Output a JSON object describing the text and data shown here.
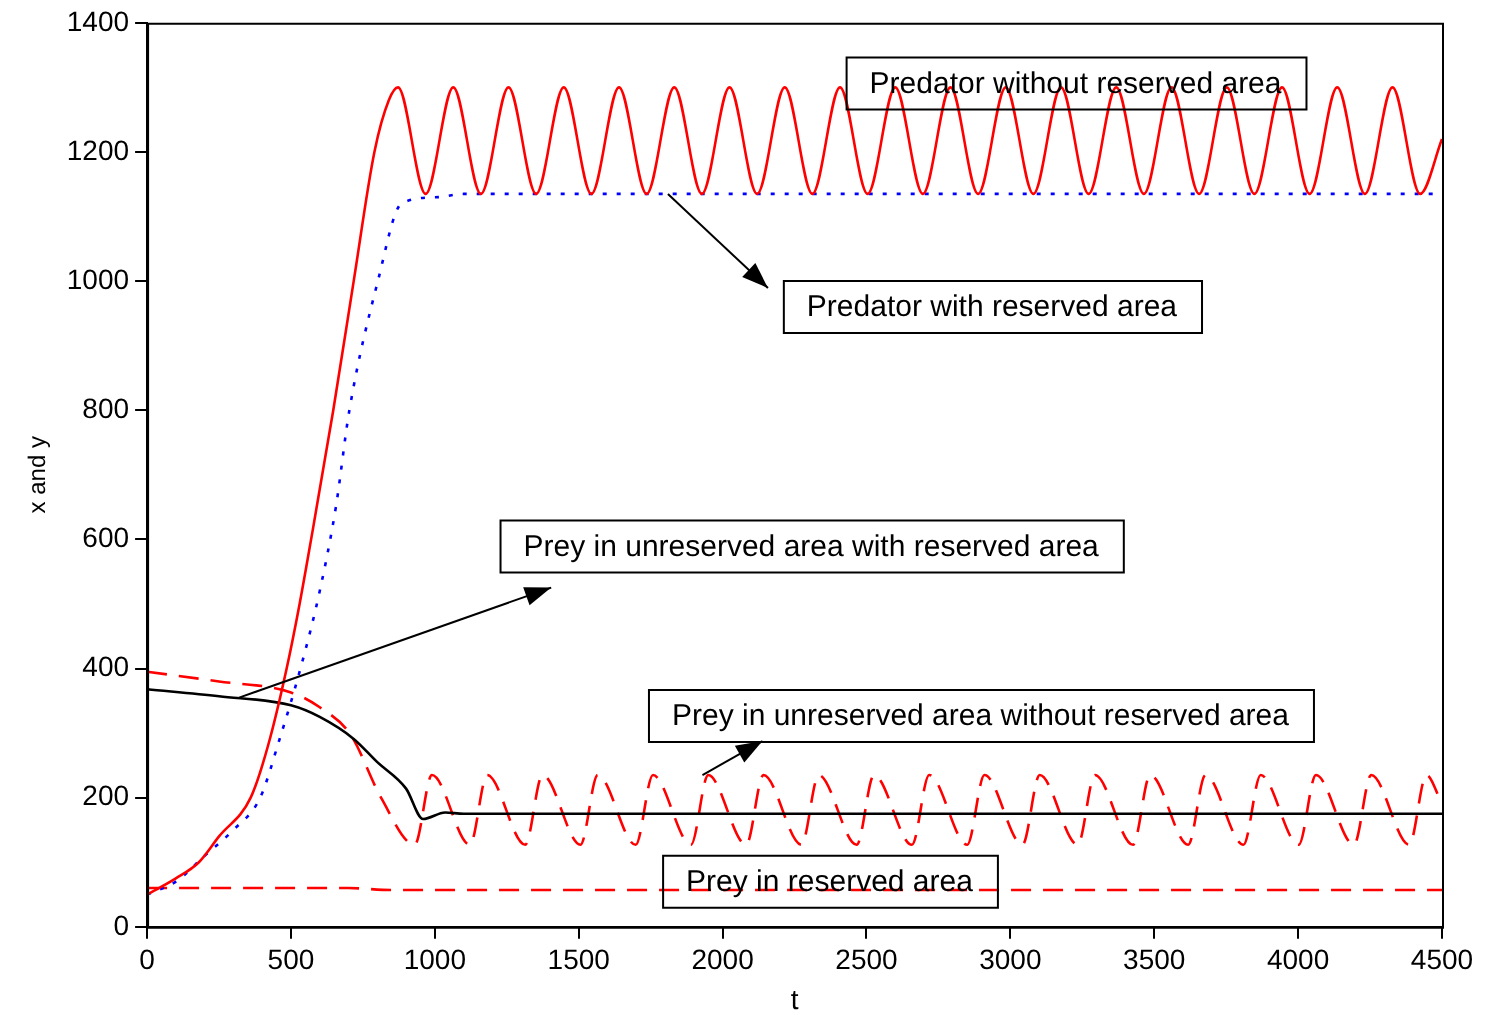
{
  "chart_data": {
    "type": "line",
    "xlabel": "t",
    "ylabel": "x and y",
    "xlim": [
      0,
      4500
    ],
    "xticks": [
      0,
      500,
      1000,
      1500,
      2000,
      2500,
      3000,
      3500,
      4000,
      4500
    ],
    "ylim": [
      0,
      1400
    ],
    "yticks": [
      0,
      200,
      400,
      600,
      800,
      1000,
      1200,
      1400
    ],
    "legend": false,
    "marker": "none",
    "series": [
      {
        "color": "#ff0000",
        "line_style": "solid",
        "x": [
          0,
          100,
          180,
          250,
          360,
          420,
          485,
          530,
          570,
          647,
          718,
          790,
          840,
          872,
          968,
          1064,
          1160,
          1256,
          1352,
          1448,
          1544,
          1640,
          1736,
          1832,
          1928,
          2024,
          2120,
          2216,
          2312,
          2408,
          2504,
          2600,
          2696,
          2792,
          2888,
          2984,
          3080,
          3176,
          3272,
          3368,
          3464,
          3560,
          3656,
          3752,
          3848,
          3944,
          4040,
          4136,
          4232,
          4328,
          4424,
          4500
        ],
        "values": [
          50,
          75,
          100,
          140,
          200,
          280,
          400,
          500,
          600,
          800,
          1000,
          1200,
          1280,
          1300,
          1135,
          1300,
          1135,
          1300,
          1135,
          1300,
          1135,
          1300,
          1135,
          1300,
          1135,
          1300,
          1135,
          1300,
          1135,
          1300,
          1135,
          1300,
          1135,
          1300,
          1135,
          1300,
          1135,
          1300,
          1135,
          1300,
          1135,
          1300,
          1135,
          1300,
          1135,
          1300,
          1135,
          1300,
          1135,
          1300,
          1135,
          1220
        ]
      },
      {
        "color": "#0000ff",
        "line_style": "dotted",
        "x": [
          0,
          100,
          200,
          300,
          393,
          460,
          533,
          600,
          656,
          703,
          802,
          884,
          1013,
          1100,
          4500
        ],
        "values": [
          50,
          70,
          110,
          150,
          200,
          290,
          400,
          520,
          650,
          800,
          1000,
          1120,
          1130,
          1135,
          1135
        ]
      },
      {
        "color": "#000000",
        "line_style": "solid",
        "x": [
          0,
          250,
          500,
          600,
          718,
          800,
          900,
          959,
          1036,
          1100,
          4500
        ],
        "values": [
          368,
          357,
          343,
          325,
          291,
          255,
          214,
          167,
          177,
          175,
          175
        ]
      },
      {
        "color": "#ff0000",
        "line_style": "dashed",
        "x": [
          0,
          250,
          500,
          600,
          708,
          813,
          930,
          990,
          1122,
          1182,
          1314,
          1374,
          1506,
          1566,
          1698,
          1758,
          1890,
          1950,
          2082,
          2142,
          2274,
          2334,
          2466,
          2526,
          2658,
          2718,
          2850,
          2910,
          3042,
          3102,
          3234,
          3294,
          3426,
          3486,
          3618,
          3678,
          3810,
          3870,
          4002,
          4062,
          4194,
          4254,
          4386,
          4446,
          4500
        ],
        "values": [
          395,
          380,
          363,
          340,
          297,
          200,
          127,
          235,
          127,
          235,
          127,
          235,
          127,
          235,
          127,
          235,
          127,
          235,
          127,
          235,
          127,
          235,
          127,
          235,
          127,
          235,
          127,
          235,
          127,
          235,
          127,
          235,
          127,
          235,
          127,
          235,
          127,
          235,
          127,
          235,
          127,
          235,
          127,
          235,
          190
        ]
      },
      {
        "color": "#ff0000",
        "line_style": "dashed",
        "x": [
          0,
          700,
          850,
          4500
        ],
        "values": [
          60,
          60,
          57,
          57
        ]
      }
    ],
    "annotations": [
      "Predator without reserved area",
      {
        "text": "Predator with reserved area",
        "x": 1810,
        "y": 1135
      },
      {
        "text": "Prey in unreserved area with reserved area",
        "x": 320,
        "y": 355
      },
      {
        "text": "Prey in unreserved area without reserved area",
        "x": 1930,
        "y": 235
      },
      "Prey in reserved area"
    ]
  }
}
